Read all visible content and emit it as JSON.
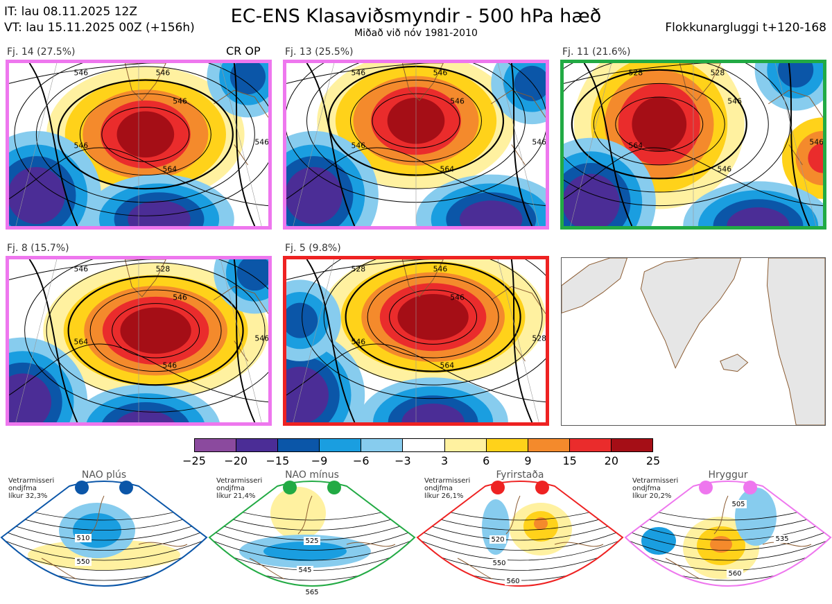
{
  "header": {
    "it": "IT: lau 08.11.2025 12Z",
    "vt": "VT: lau 15.11.2025 00Z  (+156h)",
    "title": "EC-ENS Klasaviðsmyndir - 500 hPa hæð",
    "subtitle": "Miðað við nóv 1981-2010",
    "window": "Flokkunargluggi t+120-168"
  },
  "panels": [
    {
      "label": "Fj. 14 (27.5%)",
      "tag": "CR OP",
      "frame_color": "#ee77ee",
      "contours": [
        "546",
        "546",
        "564",
        "546",
        "546",
        "546"
      ]
    },
    {
      "label": "Fj. 13 (25.5%)",
      "frame_color": "#ee77ee",
      "contours": [
        "546",
        "546",
        "564",
        "546",
        "546",
        "546"
      ]
    },
    {
      "label": "Fj. 11 (21.6%)",
      "frame_color": "#22aa44",
      "contours": [
        "528",
        "528",
        "546",
        "546",
        "564",
        "546"
      ]
    },
    {
      "label": "Fj. 8 (15.7%)",
      "frame_color": "#ee77ee",
      "contours": [
        "546",
        "528",
        "546",
        "546",
        "564",
        "546"
      ]
    },
    {
      "label": "Fj. 5 (9.8%)",
      "frame_color": "#ee2222",
      "contours": [
        "528",
        "546",
        "564",
        "546",
        "546",
        "528"
      ]
    }
  ],
  "colorbar": {
    "colors": [
      "#8b4a9e",
      "#4b2d96",
      "#0b56a8",
      "#1a9ee0",
      "#87ccee",
      "#ffffff",
      "#fff1a0",
      "#ffd21a",
      "#f48a2c",
      "#ea2c2c",
      "#a50e16"
    ],
    "ticks": [
      "−25",
      "−20",
      "−15",
      "−9",
      "−6",
      "−3",
      "3",
      "6",
      "9",
      "15",
      "20",
      "25"
    ]
  },
  "regimes": [
    {
      "name": "NAO plús",
      "note": [
        "Vetrarmisseri",
        "ondjfma",
        "líkur 32,3%"
      ],
      "color": "#0b56a8",
      "labels": [
        "510",
        "550"
      ]
    },
    {
      "name": "NAO mínus",
      "note": [
        "Vetrarmisseri",
        "ondjfma",
        "líkur 21,4%"
      ],
      "color": "#22aa44",
      "labels": [
        "525",
        "545",
        "565"
      ]
    },
    {
      "name": "Fyrirstaða",
      "note": [
        "Vetrarmisseri",
        "ondjfma",
        "líkur 26,1%"
      ],
      "color": "#ee2222",
      "labels": [
        "520",
        "550",
        "560"
      ]
    },
    {
      "name": "Hryggur",
      "note": [
        "Vetrarmisseri",
        "ondjfma",
        "líkur 20,2%"
      ],
      "color": "#ee77ee",
      "labels": [
        "505",
        "535",
        "560"
      ]
    }
  ]
}
